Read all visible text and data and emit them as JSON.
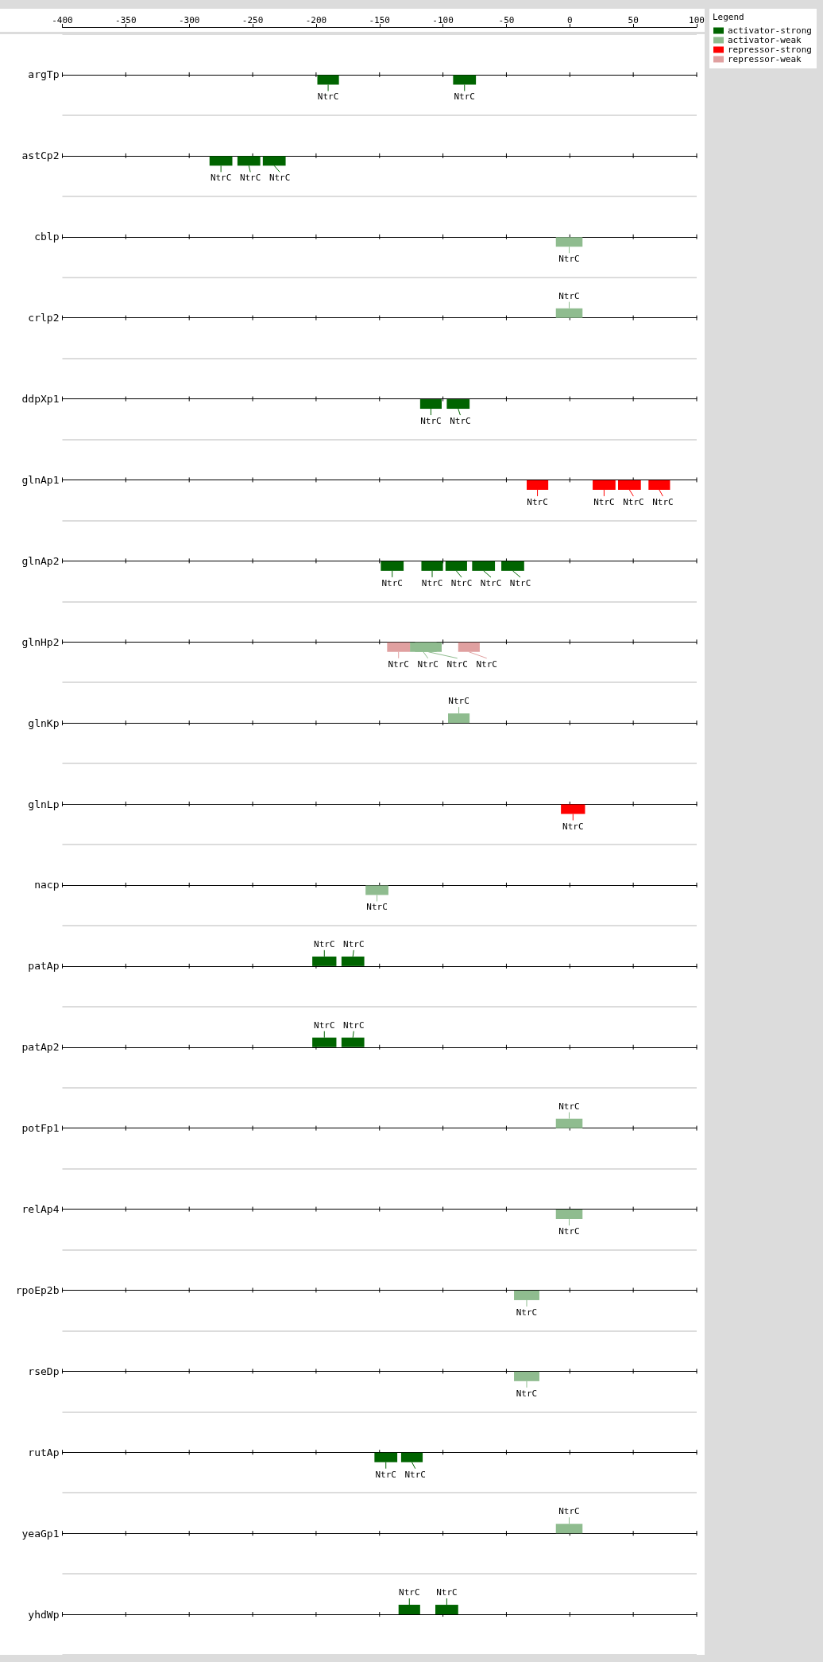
{
  "chart_data": {
    "type": "bar",
    "orientation": "horizontal",
    "categories": [
      "argTp",
      "astCp2",
      "cblp",
      "crlp2",
      "ddpXp1",
      "glnAp1",
      "glnAp2",
      "glnHp2",
      "glnKp",
      "glnLp",
      "nacp",
      "patAp",
      "patAp2",
      "potFp1",
      "relAp4",
      "rpoEp2b",
      "rseDp",
      "rutAp",
      "yeaGp1",
      "yhdWp"
    ],
    "xlim": [
      -400,
      100
    ],
    "xticks": [
      -400,
      -350,
      -300,
      -250,
      -200,
      -150,
      -100,
      -50,
      0,
      50,
      100
    ],
    "grid": "y",
    "legend": "top right",
    "legend_title": "Legend",
    "series": [
      {
        "name": "activator-strong",
        "color": "#006400",
        "base": [
          -199,
          -284,
          null,
          null,
          -118,
          null,
          -149,
          null,
          null,
          null,
          null,
          -184,
          -184,
          null,
          null,
          null,
          null,
          -154,
          null,
          -118
        ],
        "values": [
          17,
          18,
          null,
          null,
          17,
          null,
          18,
          null,
          null,
          null,
          null,
          -19,
          -19,
          null,
          null,
          null,
          null,
          18,
          null,
          -17
        ],
        "value_labels": [
          "NtrC",
          "NtrC",
          null,
          null,
          "NtrC",
          null,
          "NtrC",
          null,
          null,
          null,
          null,
          "NtrC",
          "NtrC",
          null,
          null,
          null,
          null,
          "NtrC",
          null,
          "NtrC"
        ]
      },
      {
        "color": "#006400",
        "base": [
          -92,
          -262,
          null,
          null,
          -97,
          null,
          -117,
          null,
          null,
          null,
          null,
          -162,
          -162,
          null,
          null,
          null,
          null,
          -133,
          null,
          -88
        ],
        "values": [
          18,
          18,
          null,
          null,
          18,
          null,
          17,
          null,
          null,
          null,
          null,
          -18,
          -18,
          null,
          null,
          null,
          null,
          17,
          null,
          -18
        ],
        "value_labels": [
          "NtrC",
          "NtrC",
          null,
          null,
          "NtrC",
          null,
          "NtrC",
          null,
          null,
          null,
          null,
          "NtrC",
          "NtrC",
          null,
          null,
          null,
          null,
          "NtrC",
          null,
          "NtrC"
        ]
      },
      {
        "color": "#006400",
        "base": [
          null,
          -242,
          null,
          null,
          null,
          null,
          -98,
          null,
          null,
          null,
          null,
          null,
          null,
          null,
          null,
          null,
          null,
          null,
          null,
          null
        ],
        "values": [
          null,
          18,
          null,
          null,
          null,
          null,
          17,
          null,
          null,
          null,
          null,
          null,
          null,
          null,
          null,
          null,
          null,
          null,
          null,
          null
        ],
        "value_labels": [
          null,
          "NtrC",
          null,
          null,
          null,
          null,
          "NtrC",
          null,
          null,
          null,
          null,
          null,
          null,
          null,
          null,
          null,
          null,
          null,
          null,
          null
        ]
      },
      {
        "color": "#006400",
        "base": [
          null,
          null,
          null,
          null,
          null,
          null,
          -77,
          null,
          null,
          null,
          null,
          null,
          null,
          null,
          null,
          null,
          null,
          null,
          null,
          null
        ],
        "values": [
          null,
          null,
          null,
          null,
          null,
          null,
          18,
          null,
          null,
          null,
          null,
          null,
          null,
          null,
          null,
          null,
          null,
          null,
          null,
          null
        ],
        "value_labels": [
          null,
          null,
          null,
          null,
          null,
          null,
          "NtrC",
          null,
          null,
          null,
          null,
          null,
          null,
          null,
          null,
          null,
          null,
          null,
          null,
          null
        ]
      },
      {
        "color": "#006400",
        "base": [
          null,
          null,
          null,
          null,
          null,
          null,
          -54,
          null,
          null,
          null,
          null,
          null,
          null,
          null,
          null,
          null,
          null,
          null,
          null,
          null
        ],
        "values": [
          null,
          null,
          null,
          null,
          null,
          null,
          18,
          null,
          null,
          null,
          null,
          null,
          null,
          null,
          null,
          null,
          null,
          null,
          null,
          null
        ],
        "value_labels": [
          null,
          null,
          null,
          null,
          null,
          null,
          "NtrC",
          null,
          null,
          null,
          null,
          null,
          null,
          null,
          null,
          null,
          null,
          null,
          null,
          null
        ]
      },
      {
        "name": "activator-weak",
        "color": "#8fbc8f",
        "base": [
          null,
          null,
          -11,
          10,
          null,
          null,
          null,
          -126,
          -79,
          null,
          -161,
          null,
          null,
          10,
          -11,
          -44,
          -44,
          null,
          10,
          null
        ],
        "values": [
          null,
          null,
          21,
          -21,
          null,
          null,
          null,
          21,
          -17,
          null,
          18,
          null,
          null,
          -21,
          21,
          20,
          20,
          null,
          -21,
          null
        ],
        "value_labels": [
          null,
          null,
          "NtrC",
          "NtrC",
          null,
          null,
          null,
          "NtrC",
          "NtrC",
          null,
          "NtrC",
          null,
          null,
          "NtrC",
          "NtrC",
          "NtrC",
          "NtrC",
          null,
          "NtrC",
          null
        ]
      },
      {
        "color": "#8fbc8f",
        "base": [
          null,
          null,
          null,
          null,
          null,
          null,
          null,
          -122,
          null,
          null,
          null,
          null,
          null,
          null,
          null,
          null,
          null,
          null,
          null,
          null
        ],
        "values": [
          null,
          null,
          null,
          null,
          null,
          null,
          null,
          21,
          null,
          null,
          null,
          null,
          null,
          null,
          null,
          null,
          null,
          null,
          null,
          null
        ],
        "value_labels": [
          null,
          null,
          null,
          null,
          null,
          null,
          null,
          "NtrC",
          null,
          null,
          null,
          null,
          null,
          null,
          null,
          null,
          null,
          null,
          null,
          null
        ]
      },
      {
        "name": "repressor-strong",
        "color": "#ff0000",
        "base": [
          null,
          null,
          null,
          null,
          null,
          -34,
          null,
          null,
          null,
          -7,
          null,
          null,
          null,
          null,
          null,
          null,
          null,
          null,
          null,
          null
        ],
        "values": [
          null,
          null,
          null,
          null,
          null,
          17,
          null,
          null,
          null,
          19,
          null,
          null,
          null,
          null,
          null,
          null,
          null,
          null,
          null,
          null
        ],
        "value_labels": [
          null,
          null,
          null,
          null,
          null,
          "NtrC",
          null,
          null,
          null,
          "NtrC",
          null,
          null,
          null,
          null,
          null,
          null,
          null,
          null,
          null,
          null
        ]
      },
      {
        "color": "#ff0000",
        "base": [
          null,
          null,
          null,
          null,
          null,
          18,
          null,
          null,
          null,
          null,
          null,
          null,
          null,
          null,
          null,
          null,
          null,
          null,
          null,
          null
        ],
        "values": [
          null,
          null,
          null,
          null,
          null,
          18,
          null,
          null,
          null,
          null,
          null,
          null,
          null,
          null,
          null,
          null,
          null,
          null,
          null,
          null
        ],
        "value_labels": [
          null,
          null,
          null,
          null,
          null,
          "NtrC",
          null,
          null,
          null,
          null,
          null,
          null,
          null,
          null,
          null,
          null,
          null,
          null,
          null,
          null
        ]
      },
      {
        "color": "#ff0000",
        "base": [
          null,
          null,
          null,
          null,
          null,
          38,
          null,
          null,
          null,
          null,
          null,
          null,
          null,
          null,
          null,
          null,
          null,
          null,
          null,
          null
        ],
        "values": [
          null,
          null,
          null,
          null,
          null,
          18,
          null,
          null,
          null,
          null,
          null,
          null,
          null,
          null,
          null,
          null,
          null,
          null,
          null,
          null
        ],
        "value_labels": [
          null,
          null,
          null,
          null,
          null,
          "NtrC",
          null,
          null,
          null,
          null,
          null,
          null,
          null,
          null,
          null,
          null,
          null,
          null,
          null,
          null
        ]
      },
      {
        "color": "#ff0000",
        "base": [
          null,
          null,
          null,
          null,
          null,
          62,
          null,
          null,
          null,
          null,
          null,
          null,
          null,
          null,
          null,
          null,
          null,
          null,
          null,
          null
        ],
        "values": [
          null,
          null,
          null,
          null,
          null,
          17,
          null,
          null,
          null,
          null,
          null,
          null,
          null,
          null,
          null,
          null,
          null,
          null,
          null,
          null
        ],
        "value_labels": [
          null,
          null,
          null,
          null,
          null,
          "NtrC",
          null,
          null,
          null,
          null,
          null,
          null,
          null,
          null,
          null,
          null,
          null,
          null,
          null,
          null
        ]
      },
      {
        "name": "repressor-weak",
        "color": "#e0a0a0",
        "base": [
          null,
          null,
          null,
          null,
          null,
          null,
          null,
          -144,
          null,
          null,
          null,
          null,
          null,
          null,
          null,
          null,
          null,
          null,
          null,
          null
        ],
        "values": [
          null,
          null,
          null,
          null,
          null,
          null,
          null,
          18,
          null,
          null,
          null,
          null,
          null,
          null,
          null,
          null,
          null,
          null,
          null,
          null
        ],
        "value_labels": [
          null,
          null,
          null,
          null,
          null,
          null,
          null,
          "NtrC",
          null,
          null,
          null,
          null,
          null,
          null,
          null,
          null,
          null,
          null,
          null,
          null
        ]
      },
      {
        "color": "#e0a0a0",
        "base": [
          null,
          null,
          null,
          null,
          null,
          null,
          null,
          -88,
          null,
          null,
          null,
          null,
          null,
          null,
          null,
          null,
          null,
          null,
          null,
          null
        ],
        "values": [
          null,
          null,
          null,
          null,
          null,
          null,
          null,
          17,
          null,
          null,
          null,
          null,
          null,
          null,
          null,
          null,
          null,
          null,
          null,
          null
        ],
        "value_labels": [
          null,
          null,
          null,
          null,
          null,
          null,
          null,
          "NtrC",
          null,
          null,
          null,
          null,
          null,
          null,
          null,
          null,
          null,
          null,
          null,
          null
        ]
      }
    ]
  }
}
